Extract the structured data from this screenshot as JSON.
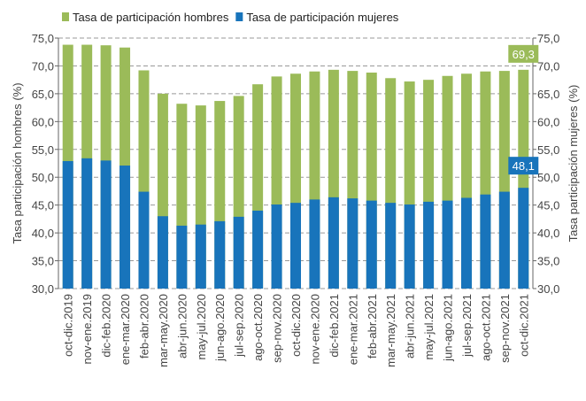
{
  "chart_data": {
    "type": "bar",
    "categories": [
      "oct-dic.2019",
      "nov-ene.2019",
      "dic-feb.2020",
      "ene-mar.2020",
      "feb-abr.2020",
      "mar-may.2020",
      "abr-jun.2020",
      "may-jul.2020",
      "jun-ago.2020",
      "jul-sep.2020",
      "ago-oct.2020",
      "sep-nov.2020",
      "oct-dic.2020",
      "nov-ene.2020",
      "dic-feb.2021",
      "ene-mar.2021",
      "feb-abr.2021",
      "mar-may.2021",
      "abr-jun.2021",
      "may-jul.2021",
      "jun-ago.2021",
      "jul-sep.2021",
      "ago-oct.2021",
      "sep-nov.2021",
      "oct-dic.2021"
    ],
    "series": [
      {
        "name": "Tasa de participación hombres",
        "color": "#9bbb59",
        "axis": "y",
        "values": [
          73.8,
          73.8,
          73.7,
          73.3,
          69.2,
          65.0,
          63.2,
          62.9,
          63.7,
          64.6,
          66.7,
          68.1,
          68.6,
          69.0,
          69.3,
          69.1,
          68.8,
          67.8,
          67.2,
          67.5,
          68.2,
          68.6,
          69.0,
          69.1,
          69.3
        ],
        "value_labels": [
          null,
          null,
          null,
          null,
          null,
          null,
          null,
          null,
          null,
          null,
          null,
          null,
          null,
          null,
          null,
          null,
          null,
          null,
          null,
          null,
          null,
          null,
          null,
          null,
          "69,3"
        ]
      },
      {
        "name": "Tasa de participación mujeres",
        "color": "#1874bb",
        "axis": "y2",
        "values": [
          52.9,
          53.4,
          53.0,
          52.1,
          47.4,
          43.0,
          41.3,
          41.5,
          42.1,
          42.9,
          44.0,
          45.1,
          45.4,
          46.0,
          46.4,
          46.2,
          45.8,
          45.4,
          45.1,
          45.6,
          45.8,
          46.3,
          46.9,
          47.4,
          48.1
        ],
        "value_labels": [
          null,
          null,
          null,
          null,
          null,
          null,
          null,
          null,
          null,
          null,
          null,
          null,
          null,
          null,
          null,
          null,
          null,
          null,
          null,
          null,
          null,
          null,
          null,
          null,
          "48,1"
        ]
      }
    ],
    "ylabel": "Tasa participación hombres (%)",
    "y2label": "Tasa participación mujeres (%)",
    "ylim": [
      30,
      75
    ],
    "y2lim": [
      30,
      75
    ],
    "yticks": [
      {
        "value": 30,
        "label": "30,0"
      },
      {
        "value": 35,
        "label": "35,0"
      },
      {
        "value": 40,
        "label": "40,0"
      },
      {
        "value": 45,
        "label": "45,0"
      },
      {
        "value": 50,
        "label": "50,0"
      },
      {
        "value": 55,
        "label": "55,0"
      },
      {
        "value": 60,
        "label": "60,0"
      },
      {
        "value": 65,
        "label": "65,0"
      },
      {
        "value": 70,
        "label": "70,0"
      },
      {
        "value": 75,
        "label": "75,0"
      }
    ],
    "y2ticks": [
      {
        "value": 30,
        "label": "30,0"
      },
      {
        "value": 35,
        "label": "35,0"
      },
      {
        "value": 40,
        "label": "40,0"
      },
      {
        "value": 45,
        "label": "45,0"
      },
      {
        "value": 50,
        "label": "50,0"
      },
      {
        "value": 55,
        "label": "55,0"
      },
      {
        "value": 60,
        "label": "60,0"
      },
      {
        "value": 65,
        "label": "65,0"
      },
      {
        "value": 70,
        "label": "70,0"
      },
      {
        "value": 75,
        "label": "75,0"
      }
    ],
    "grid": true,
    "legend": "top-left"
  }
}
